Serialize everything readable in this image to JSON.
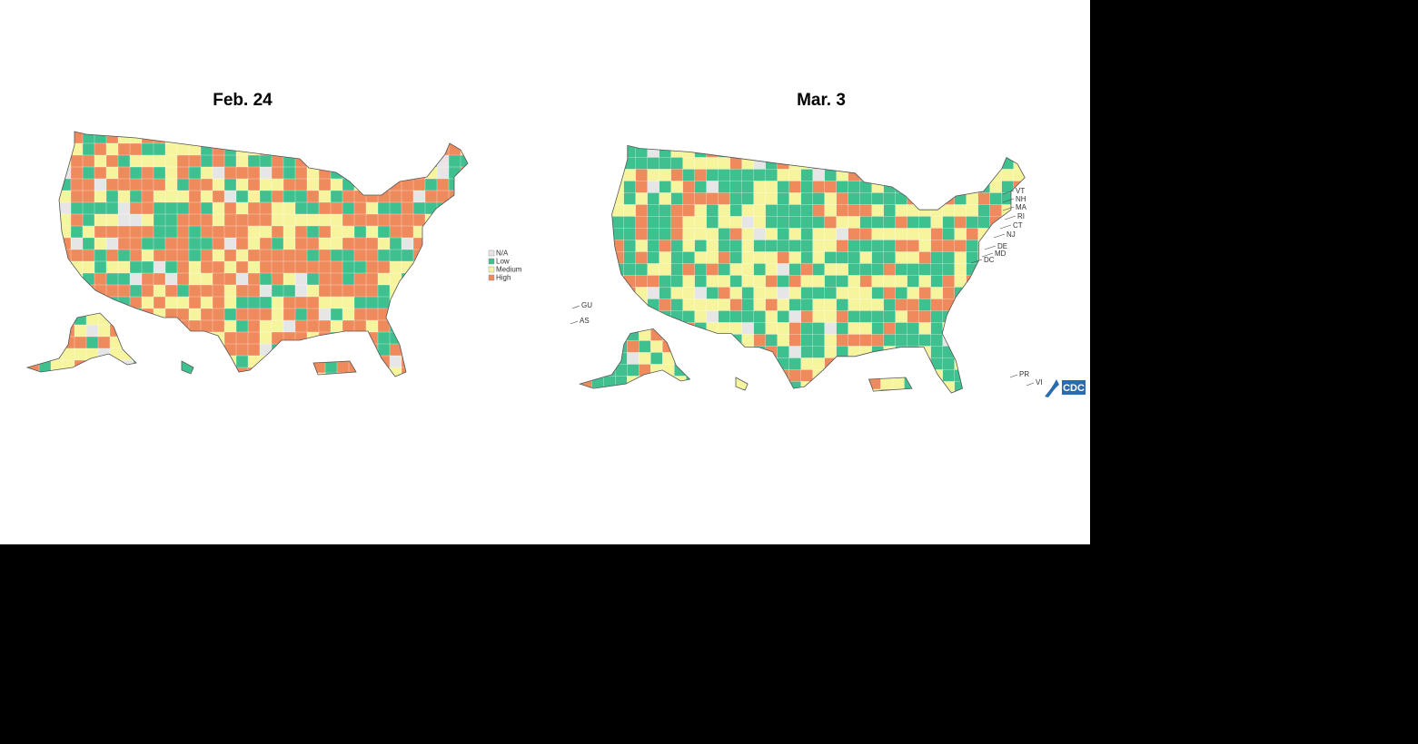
{
  "maps": [
    {
      "title": "Feb. 24"
    },
    {
      "title": "Mar. 3",
      "state_labels": [
        "VT",
        "NH",
        "MA",
        "RI",
        "CT",
        "NJ",
        "DE",
        "MD",
        "DC"
      ],
      "territory_labels": [
        "GU",
        "AS",
        "PR",
        "VI"
      ]
    }
  ],
  "legend": {
    "items": [
      {
        "label": "N/A",
        "color": "#e6e6e6"
      },
      {
        "label": "Low",
        "color": "#3fc08f"
      },
      {
        "label": "Medium",
        "color": "#f6f59e"
      },
      {
        "label": "High",
        "color": "#ef8a5c"
      }
    ]
  },
  "logo": "CDC"
}
